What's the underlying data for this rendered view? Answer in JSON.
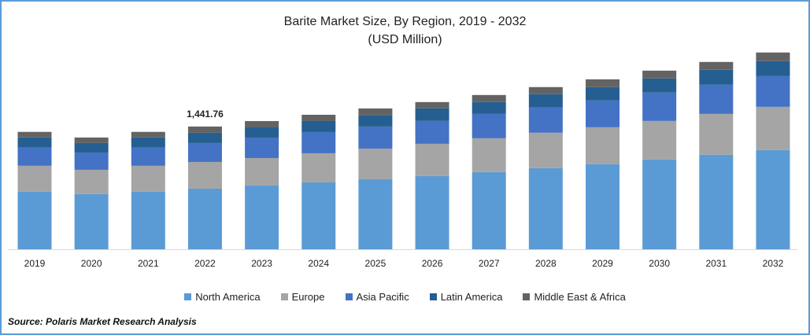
{
  "chart_data": {
    "type": "bar",
    "stacked": true,
    "title": "Barite Market Size, By Region, 2019 - 2032",
    "subtitle": "(USD Million)",
    "xlabel": "",
    "ylabel": "",
    "ylim": [
      0,
      2400
    ],
    "grid": false,
    "legend_position": "bottom",
    "categories": [
      "2019",
      "2020",
      "2021",
      "2022",
      "2023",
      "2024",
      "2025",
      "2026",
      "2027",
      "2028",
      "2029",
      "2030",
      "2031",
      "2032"
    ],
    "series": [
      {
        "name": "North America",
        "color": "#5b9bd5",
        "values": [
          675,
          647,
          675,
          711,
          748,
          785,
          822,
          859,
          906,
          952,
          998,
          1053,
          1109,
          1164
        ]
      },
      {
        "name": "Europe",
        "color": "#a5a5a5",
        "values": [
          305,
          286,
          305,
          314,
          323,
          342,
          360,
          379,
          397,
          416,
          434,
          453,
          480,
          508
        ]
      },
      {
        "name": "Asia Pacific",
        "color": "#4472c4",
        "values": [
          213,
          203,
          213,
          222,
          240,
          249,
          259,
          268,
          286,
          296,
          314,
          333,
          342,
          360
        ]
      },
      {
        "name": "Latin America",
        "color": "#255e91",
        "values": [
          120,
          111,
          120,
          120,
          120,
          129,
          129,
          148,
          139,
          157,
          157,
          166,
          176,
          176
        ]
      },
      {
        "name": "Middle East & Africa",
        "color": "#636363",
        "values": [
          65,
          65,
          65,
          74,
          74,
          74,
          83,
          74,
          83,
          83,
          92,
          92,
          92,
          102
        ]
      }
    ],
    "annotations": [
      {
        "category": "2022",
        "text": "1,441.76"
      }
    ],
    "source": "Source: Polaris  Market Research Analysis"
  }
}
